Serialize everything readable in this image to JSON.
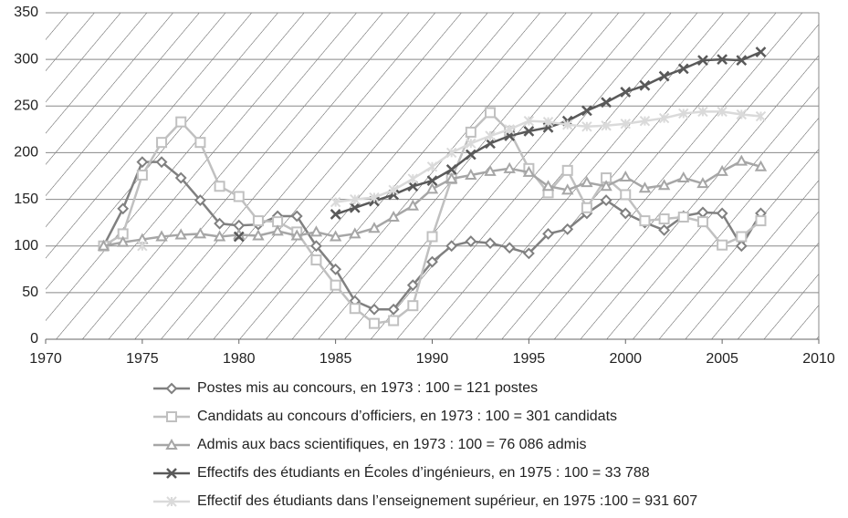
{
  "chart_data": {
    "type": "line",
    "x": [
      1973,
      1974,
      1975,
      1976,
      1977,
      1978,
      1979,
      1980,
      1981,
      1982,
      1983,
      1984,
      1985,
      1986,
      1987,
      1988,
      1989,
      1990,
      1991,
      1992,
      1993,
      1994,
      1995,
      1996,
      1997,
      1998,
      1999,
      2000,
      2001,
      2002,
      2003,
      2004,
      2005,
      2006,
      2007
    ],
    "series": [
      {
        "name": "Postes mis au concours, en 1973 : 100 = 121 postes",
        "color": "#808080",
        "marker": "diamond",
        "values": [
          100,
          140,
          190,
          190,
          173,
          149,
          124,
          122,
          123,
          132,
          132,
          100,
          75,
          41,
          32,
          32,
          58,
          83,
          100,
          105,
          103,
          98,
          92,
          113,
          118,
          135,
          149,
          135,
          125,
          117,
          132,
          136,
          135,
          100,
          135
        ]
      },
      {
        "name": "Candidats au concours d’officiers, en 1973 : 100 = 301 candidats",
        "color": "#c0c0c0",
        "marker": "square",
        "values": [
          100,
          113,
          176,
          211,
          233,
          211,
          164,
          153,
          127,
          126,
          115,
          85,
          58,
          33,
          17,
          20,
          36,
          110,
          172,
          222,
          243,
          223,
          183,
          157,
          181,
          141,
          173,
          155,
          127,
          129,
          131,
          126,
          101,
          110,
          127
        ]
      },
      {
        "name": "Admis aux bacs scientifiques, en 1973 : 100 = 76 086 admis",
        "color": "#a6a6a6",
        "marker": "triangle",
        "values": [
          100,
          104,
          107,
          110,
          112,
          113,
          110,
          112,
          111,
          116,
          111,
          115,
          110,
          113,
          119,
          131,
          143,
          161,
          172,
          176,
          180,
          183,
          179,
          164,
          160,
          168,
          164,
          174,
          162,
          165,
          173,
          167,
          180,
          191,
          185
        ]
      },
      {
        "name": "Effectifs des étudiants en Écoles d’ingénieurs, en 1975 : 100 = 33 788",
        "color": "#595959",
        "marker": "x",
        "values": [
          null,
          null,
          null,
          null,
          null,
          null,
          null,
          110,
          null,
          null,
          null,
          null,
          134,
          141,
          148,
          155,
          164,
          170,
          182,
          198,
          210,
          218,
          223,
          227,
          234,
          245,
          254,
          265,
          272,
          282,
          290,
          299,
          300,
          299,
          308
        ]
      },
      {
        "name": "Effectif des étudiants dans l’enseignement supérieur, en 1975 :100 = 931 607",
        "color": "#dadada",
        "marker": "star",
        "values": [
          null,
          null,
          100,
          null,
          null,
          null,
          null,
          null,
          null,
          null,
          null,
          null,
          147,
          150,
          152,
          160,
          172,
          185,
          200,
          210,
          218,
          225,
          234,
          233,
          230,
          228,
          229,
          231,
          234,
          237,
          242,
          244,
          244,
          241,
          239
        ]
      }
    ],
    "xlim": [
      1970,
      2010
    ],
    "xticks": [
      1970,
      1975,
      1980,
      1985,
      1990,
      1995,
      2000,
      2005,
      2010
    ],
    "ylim": [
      0,
      350
    ],
    "yticks": [
      0,
      50,
      100,
      150,
      200,
      250,
      300,
      350
    ],
    "grid": true,
    "legend": "bottom"
  }
}
